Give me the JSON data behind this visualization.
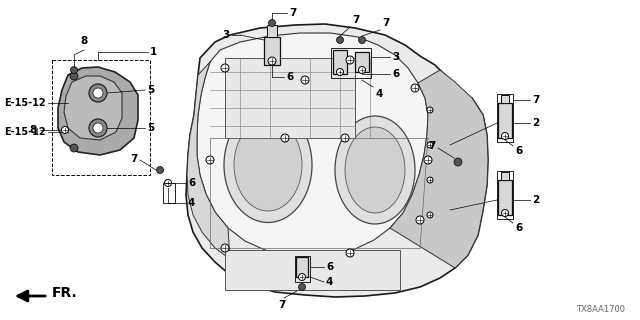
{
  "background_color": "#ffffff",
  "diagram_code": "TX8AA1700",
  "fr_label": "FR.",
  "line_color": "#000000",
  "text_color": "#000000",
  "figsize": [
    6.4,
    3.2
  ],
  "dpi": 100,
  "body_color": "#f0f0f0",
  "body_edge": "#1a1a1a",
  "part_color": "#d8d8d8",
  "part_edge": "#111111",
  "label_fs": 6.5,
  "bold_label_fs": 7.5,
  "e_label_fs": 7.0,
  "code_fs": 6.0,
  "fr_fs": 10.0
}
